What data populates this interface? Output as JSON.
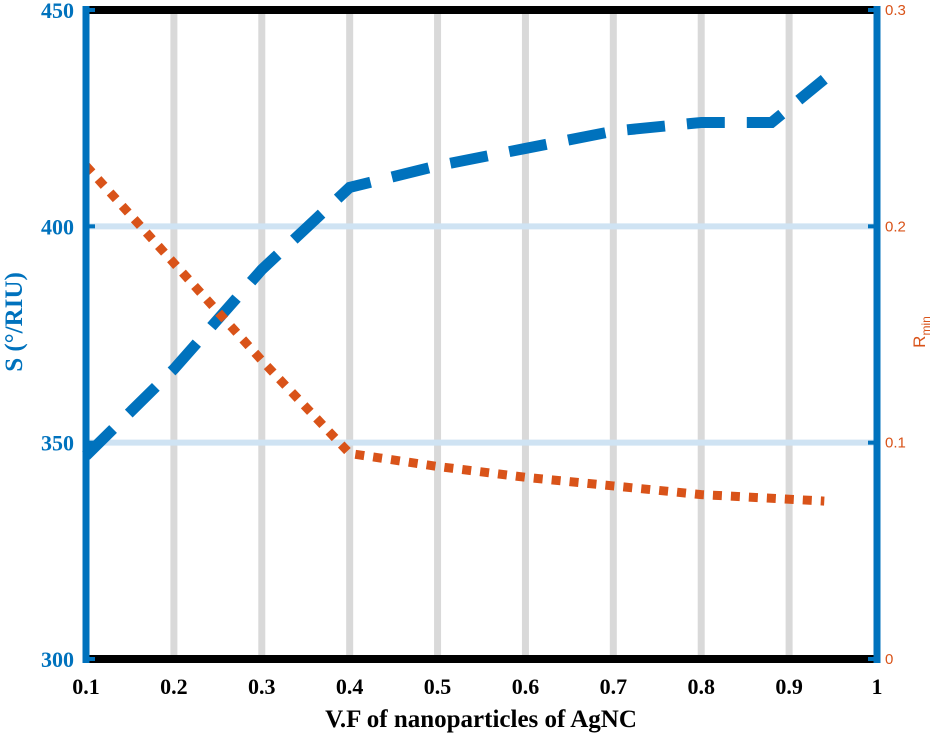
{
  "chart_data": {
    "type": "line",
    "title": "",
    "xlabel": "V.F of nanoparticles of AgNC",
    "ylabel_left": "S (°/RIU)",
    "ylabel_right": {
      "main": "R",
      "sub": "min"
    },
    "xlim": [
      0.1,
      1
    ],
    "ylim_left": [
      300,
      450
    ],
    "ylim_right": [
      0,
      0.3
    ],
    "x_ticks": [
      "0.1",
      "0.2",
      "0.3",
      "0.4",
      "0.5",
      "0.6",
      "0.7",
      "0.8",
      "0.9",
      "1"
    ],
    "y_left_ticks": [
      "300",
      "350",
      "400",
      "450"
    ],
    "y_right_ticks": [
      "0",
      "0.1",
      "0.2",
      "0.3"
    ],
    "grid": {
      "vertical": true,
      "horizontal_at_left": [
        350,
        400
      ]
    },
    "series": [
      {
        "name": "S",
        "axis": "left",
        "style": "dashed",
        "color": "#0072bd",
        "x": [
          0.1,
          0.2,
          0.3,
          0.4,
          0.5,
          0.6,
          0.7,
          0.8,
          0.88,
          0.94
        ],
        "values": [
          347,
          367,
          390,
          409,
          414,
          418,
          422,
          424,
          424,
          434
        ]
      },
      {
        "name": "R_min",
        "axis": "right",
        "style": "dotted",
        "color": "#d95319",
        "x": [
          0.1,
          0.2,
          0.3,
          0.4,
          0.5,
          0.6,
          0.7,
          0.8,
          0.94
        ],
        "values": [
          0.228,
          0.183,
          0.138,
          0.095,
          0.089,
          0.084,
          0.08,
          0.076,
          0.073
        ]
      }
    ]
  }
}
